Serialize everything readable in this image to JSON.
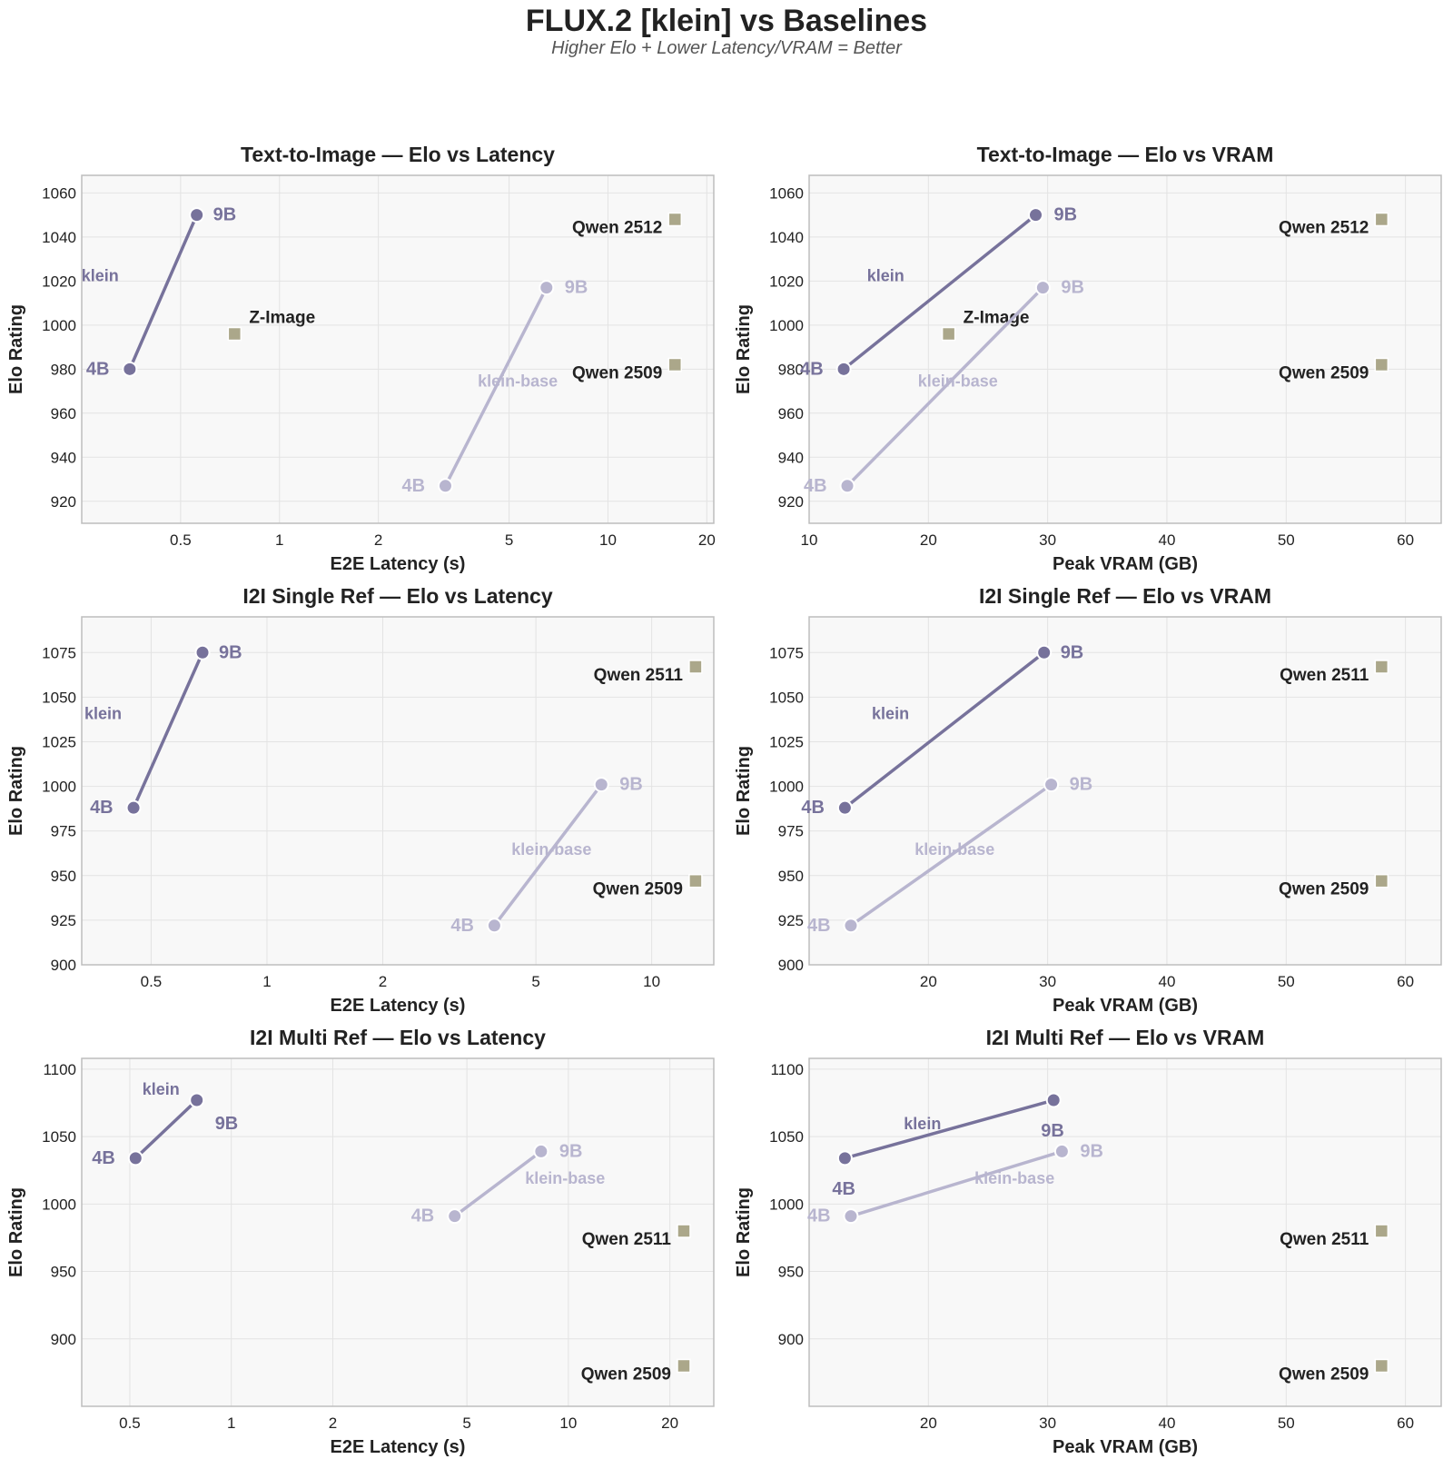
{
  "title": "FLUX.2 [klein] vs Baselines",
  "subtitle": "Higher Elo + Lower Latency/VRAM = Better",
  "colors": {
    "klein": "#77729b",
    "klein_base": "#b8b5cf",
    "baseline": "#aba78a",
    "grid": "#e3e3e3",
    "panel_bg": "#f8f8f8",
    "frame": "#bdbdbd",
    "text": "#222222"
  },
  "chart_data": [
    {
      "type": "scatter",
      "title": "Text-to-Image — Elo vs Latency",
      "xlabel": "E2E Latency (s)",
      "ylabel": "Elo Rating",
      "xscale": "log",
      "xlim": [
        0.25,
        21
      ],
      "ylim": [
        910,
        1068
      ],
      "xticks": [
        0.5,
        1,
        2,
        5,
        10,
        20
      ],
      "yticks": [
        920,
        940,
        960,
        980,
        1000,
        1020,
        1040,
        1060
      ],
      "series": [
        {
          "name": "klein",
          "role": "klein",
          "points": [
            {
              "x": 0.35,
              "y": 980,
              "label": "4B"
            },
            {
              "x": 0.56,
              "y": 1050,
              "label": "9B"
            }
          ]
        },
        {
          "name": "klein-base",
          "role": "klein_base",
          "points": [
            {
              "x": 3.2,
              "y": 927,
              "label": "4B"
            },
            {
              "x": 6.5,
              "y": 1017,
              "label": "9B"
            }
          ]
        }
      ],
      "baselines": [
        {
          "name": "Qwen 2512",
          "x": 16,
          "y": 1048
        },
        {
          "name": "Z-Image",
          "x": 0.73,
          "y": 996
        },
        {
          "name": "Qwen 2509",
          "x": 16,
          "y": 982
        }
      ]
    },
    {
      "type": "scatter",
      "title": "Text-to-Image — Elo vs VRAM",
      "xlabel": "Peak VRAM (GB)",
      "ylabel": "Elo Rating",
      "xscale": "linear",
      "xlim": [
        10,
        63
      ],
      "ylim": [
        910,
        1068
      ],
      "xticks": [
        10,
        20,
        30,
        40,
        50,
        60
      ],
      "yticks": [
        920,
        940,
        960,
        980,
        1000,
        1020,
        1040,
        1060
      ],
      "series": [
        {
          "name": "klein",
          "role": "klein",
          "points": [
            {
              "x": 12.9,
              "y": 980,
              "label": "4B"
            },
            {
              "x": 29,
              "y": 1050,
              "label": "9B"
            }
          ]
        },
        {
          "name": "klein-base",
          "role": "klein_base",
          "points": [
            {
              "x": 13.2,
              "y": 927,
              "label": "4B"
            },
            {
              "x": 29.6,
              "y": 1017,
              "label": "9B"
            }
          ]
        }
      ],
      "baselines": [
        {
          "name": "Qwen 2512",
          "x": 58,
          "y": 1048
        },
        {
          "name": "Z-Image",
          "x": 21.7,
          "y": 996
        },
        {
          "name": "Qwen 2509",
          "x": 58,
          "y": 982
        }
      ]
    },
    {
      "type": "scatter",
      "title": "I2I Single Ref — Elo vs Latency",
      "xlabel": "E2E Latency (s)",
      "ylabel": "Elo Rating",
      "xscale": "log",
      "xlim": [
        0.33,
        14.5
      ],
      "ylim": [
        900,
        1095
      ],
      "xticks": [
        0.5,
        1,
        2,
        5,
        10
      ],
      "yticks": [
        900,
        925,
        950,
        975,
        1000,
        1025,
        1050,
        1075
      ],
      "series": [
        {
          "name": "klein",
          "role": "klein",
          "points": [
            {
              "x": 0.45,
              "y": 988,
              "label": "4B"
            },
            {
              "x": 0.68,
              "y": 1075,
              "label": "9B"
            }
          ]
        },
        {
          "name": "klein-base",
          "role": "klein_base",
          "points": [
            {
              "x": 3.9,
              "y": 922,
              "label": "4B"
            },
            {
              "x": 7.4,
              "y": 1001,
              "label": "9B"
            }
          ]
        }
      ],
      "baselines": [
        {
          "name": "Qwen 2511",
          "x": 13,
          "y": 1067
        },
        {
          "name": "Qwen 2509",
          "x": 13,
          "y": 947
        }
      ]
    },
    {
      "type": "scatter",
      "title": "I2I Single Ref — Elo vs VRAM",
      "xlabel": "Peak VRAM (GB)",
      "ylabel": "Elo Rating",
      "xscale": "linear",
      "xlim": [
        10,
        63
      ],
      "ylim": [
        900,
        1095
      ],
      "xticks": [
        20,
        30,
        40,
        50,
        60
      ],
      "yticks": [
        900,
        925,
        950,
        975,
        1000,
        1025,
        1050,
        1075
      ],
      "series": [
        {
          "name": "klein",
          "role": "klein",
          "points": [
            {
              "x": 13,
              "y": 988,
              "label": "4B"
            },
            {
              "x": 29.7,
              "y": 1075,
              "label": "9B"
            }
          ]
        },
        {
          "name": "klein-base",
          "role": "klein_base",
          "points": [
            {
              "x": 13.5,
              "y": 922,
              "label": "4B"
            },
            {
              "x": 30.3,
              "y": 1001,
              "label": "9B"
            }
          ]
        }
      ],
      "baselines": [
        {
          "name": "Qwen 2511",
          "x": 58,
          "y": 1067
        },
        {
          "name": "Qwen 2509",
          "x": 58,
          "y": 947
        }
      ]
    },
    {
      "type": "scatter",
      "title": "I2I Multi Ref — Elo vs Latency",
      "xlabel": "E2E Latency (s)",
      "ylabel": "Elo Rating",
      "xscale": "log",
      "xlim": [
        0.36,
        27
      ],
      "ylim": [
        850,
        1108
      ],
      "xticks": [
        0.5,
        1,
        2,
        5,
        10,
        20
      ],
      "yticks": [
        900,
        950,
        1000,
        1050,
        1100
      ],
      "series": [
        {
          "name": "klein",
          "role": "klein",
          "points": [
            {
              "x": 0.52,
              "y": 1034,
              "label": "4B"
            },
            {
              "x": 0.79,
              "y": 1077,
              "label": "9B"
            }
          ]
        },
        {
          "name": "klein-base",
          "role": "klein_base",
          "points": [
            {
              "x": 4.6,
              "y": 991,
              "label": "4B"
            },
            {
              "x": 8.3,
              "y": 1039,
              "label": "9B"
            }
          ]
        }
      ],
      "baselines": [
        {
          "name": "Qwen 2511",
          "x": 22,
          "y": 980
        },
        {
          "name": "Qwen 2509",
          "x": 22,
          "y": 880
        }
      ]
    },
    {
      "type": "scatter",
      "title": "I2I Multi Ref — Elo vs VRAM",
      "xlabel": "Peak VRAM (GB)",
      "ylabel": "Elo Rating",
      "xscale": "linear",
      "xlim": [
        10,
        63
      ],
      "ylim": [
        850,
        1108
      ],
      "xticks": [
        20,
        30,
        40,
        50,
        60
      ],
      "yticks": [
        900,
        950,
        1000,
        1050,
        1100
      ],
      "series": [
        {
          "name": "klein",
          "role": "klein",
          "points": [
            {
              "x": 13,
              "y": 1034,
              "label": "4B"
            },
            {
              "x": 30.5,
              "y": 1077,
              "label": "9B"
            }
          ]
        },
        {
          "name": "klein-base",
          "role": "klein_base",
          "points": [
            {
              "x": 13.5,
              "y": 991,
              "label": "4B"
            },
            {
              "x": 31.2,
              "y": 1039,
              "label": "9B"
            }
          ]
        }
      ],
      "baselines": [
        {
          "name": "Qwen 2511",
          "x": 58,
          "y": 980
        },
        {
          "name": "Qwen 2509",
          "x": 58,
          "y": 880
        }
      ]
    }
  ]
}
